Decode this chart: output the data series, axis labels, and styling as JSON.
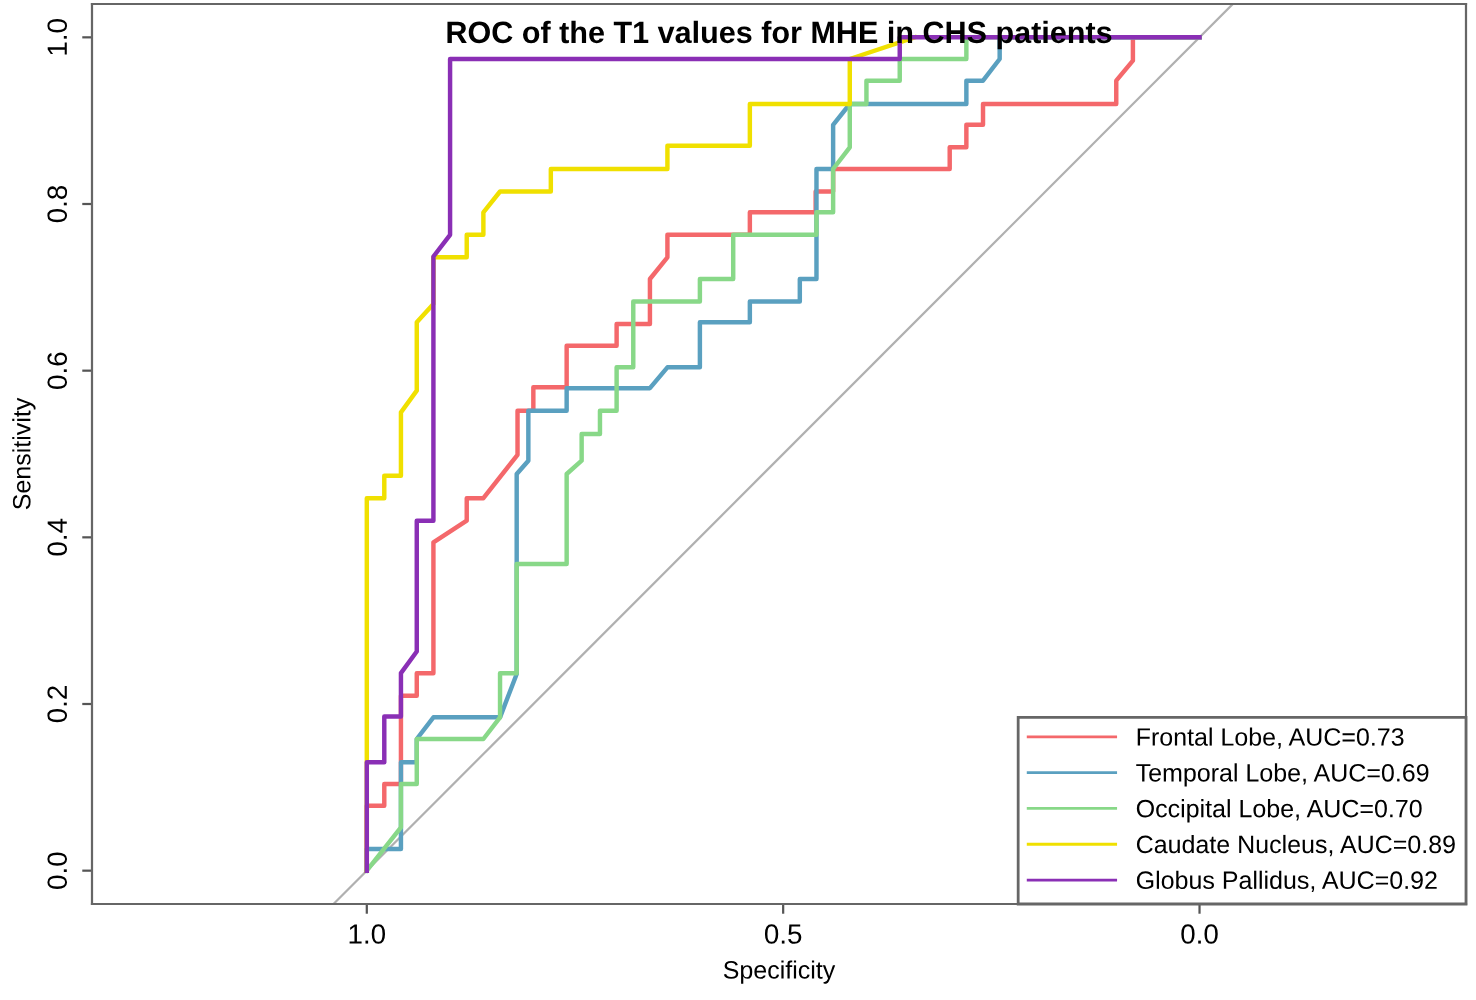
{
  "chart_data": {
    "type": "line",
    "title": "ROC of the T1 values for MHE in CHS patients",
    "xlabel": "Specificity",
    "ylabel": "Sensitivity",
    "xlim": [
      1.33,
      -0.32
    ],
    "ylim": [
      -0.04,
      1.04
    ],
    "xticks": [
      {
        "value": 1.0,
        "label": "1.0"
      },
      {
        "value": 0.5,
        "label": "0.5"
      },
      {
        "value": 0.0,
        "label": "0.0"
      }
    ],
    "yticks": [
      {
        "value": 0.0,
        "label": "0.0"
      },
      {
        "value": 0.2,
        "label": "0.2"
      },
      {
        "value": 0.4,
        "label": "0.4"
      },
      {
        "value": 0.6,
        "label": "0.6"
      },
      {
        "value": 0.8,
        "label": "0.8"
      },
      {
        "value": 1.0,
        "label": "1.0"
      }
    ],
    "grid": false,
    "legend": "bottom right",
    "marker": "none",
    "line_style": "solid",
    "series": [
      {
        "color": "#b0b0b0",
        "x": [
          1.04,
          -0.04
        ],
        "values": [
          -0.04,
          1.04
        ]
      },
      {
        "name": "Frontal Lobe, AUC=0.73",
        "color": "#f4686b",
        "x": [
          1.0,
          1.0,
          0.979,
          0.979,
          0.959,
          0.959,
          0.94,
          0.94,
          0.92,
          0.92,
          0.88,
          0.88,
          0.86,
          0.819,
          0.819,
          0.8,
          0.8,
          0.76,
          0.76,
          0.7,
          0.7,
          0.66,
          0.66,
          0.639,
          0.639,
          0.54,
          0.54,
          0.461,
          0.461,
          0.44,
          0.44,
          0.3,
          0.3,
          0.28,
          0.28,
          0.26,
          0.26,
          0.1,
          0.1,
          0.08,
          0.08,
          0.0
        ],
        "values": [
          0.0,
          0.078,
          0.078,
          0.104,
          0.104,
          0.21,
          0.21,
          0.237,
          0.237,
          0.394,
          0.42,
          0.447,
          0.447,
          0.499,
          0.552,
          0.552,
          0.58,
          0.58,
          0.63,
          0.63,
          0.656,
          0.656,
          0.71,
          0.736,
          0.763,
          0.763,
          0.79,
          0.79,
          0.815,
          0.815,
          0.842,
          0.842,
          0.868,
          0.868,
          0.895,
          0.895,
          0.92,
          0.92,
          0.948,
          0.972,
          1.0,
          1.0
        ]
      },
      {
        "name": "Temporal Lobe, AUC=0.69",
        "color": "#5aa0c0",
        "x": [
          1.0,
          1.0,
          0.959,
          0.959,
          0.94,
          0.94,
          0.92,
          0.84,
          0.82,
          0.82,
          0.806,
          0.806,
          0.779,
          0.779,
          0.76,
          0.76,
          0.66,
          0.639,
          0.6,
          0.6,
          0.54,
          0.54,
          0.48,
          0.48,
          0.46,
          0.46,
          0.44,
          0.44,
          0.42,
          0.28,
          0.28,
          0.26,
          0.24,
          0.24,
          0.0
        ],
        "values": [
          0.0,
          0.026,
          0.026,
          0.13,
          0.13,
          0.158,
          0.184,
          0.184,
          0.236,
          0.476,
          0.492,
          0.552,
          0.552,
          0.552,
          0.552,
          0.579,
          0.579,
          0.604,
          0.604,
          0.658,
          0.658,
          0.683,
          0.683,
          0.71,
          0.71,
          0.842,
          0.842,
          0.895,
          0.92,
          0.92,
          0.948,
          0.948,
          0.974,
          1.0,
          1.0
        ]
      },
      {
        "name": "Occipital Lobe, AUC=0.70",
        "color": "#88d888",
        "x": [
          1.0,
          0.959,
          0.959,
          0.94,
          0.94,
          0.86,
          0.84,
          0.84,
          0.82,
          0.82,
          0.76,
          0.76,
          0.742,
          0.742,
          0.72,
          0.72,
          0.7,
          0.7,
          0.68,
          0.68,
          0.6,
          0.6,
          0.56,
          0.56,
          0.46,
          0.46,
          0.44,
          0.44,
          0.42,
          0.42,
          0.4,
          0.4,
          0.36,
          0.36,
          0.28,
          0.28,
          0.0
        ],
        "values": [
          0.0,
          0.052,
          0.104,
          0.104,
          0.158,
          0.158,
          0.184,
          0.237,
          0.237,
          0.368,
          0.368,
          0.476,
          0.492,
          0.524,
          0.524,
          0.552,
          0.552,
          0.604,
          0.604,
          0.683,
          0.683,
          0.71,
          0.71,
          0.763,
          0.763,
          0.79,
          0.79,
          0.842,
          0.868,
          0.92,
          0.92,
          0.948,
          0.948,
          0.974,
          0.974,
          1.0,
          1.0
        ]
      },
      {
        "name": "Caudate Nucleus, AUC=0.89",
        "color": "#f0e000",
        "x": [
          1.0,
          1.0,
          0.979,
          0.979,
          0.959,
          0.959,
          0.94,
          0.94,
          0.92,
          0.92,
          0.88,
          0.88,
          0.86,
          0.86,
          0.84,
          0.779,
          0.779,
          0.639,
          0.639,
          0.54,
          0.54,
          0.42,
          0.42,
          0.342
        ],
        "values": [
          0.0,
          0.447,
          0.447,
          0.474,
          0.474,
          0.55,
          0.576,
          0.658,
          0.68,
          0.736,
          0.736,
          0.763,
          0.763,
          0.79,
          0.815,
          0.815,
          0.842,
          0.842,
          0.87,
          0.87,
          0.92,
          0.92,
          0.974,
          1.0
        ]
      },
      {
        "name": "Globus Pallidus, AUC=0.92",
        "color": "#8a2fb5",
        "x": [
          1.0,
          1.0,
          0.979,
          0.979,
          0.959,
          0.959,
          0.94,
          0.94,
          0.92,
          0.92,
          0.9,
          0.9,
          0.36,
          0.36,
          0.0
        ],
        "values": [
          0.0,
          0.13,
          0.13,
          0.185,
          0.185,
          0.237,
          0.263,
          0.42,
          0.42,
          0.737,
          0.763,
          0.974,
          0.974,
          1.0,
          1.0
        ]
      }
    ]
  }
}
